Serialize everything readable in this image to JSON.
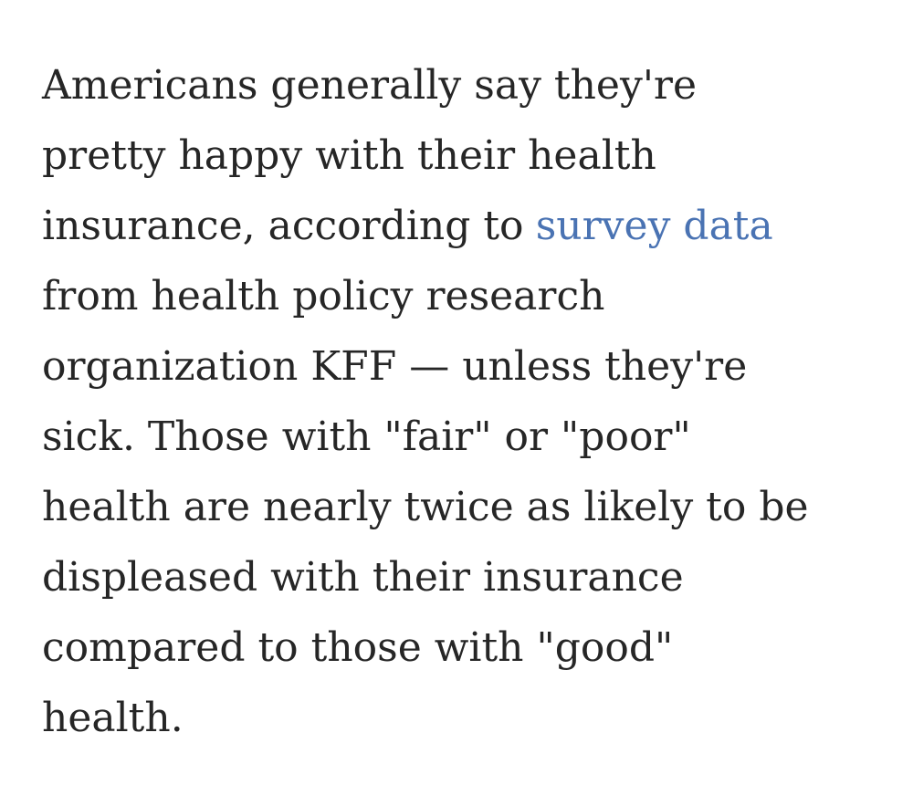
{
  "paragraph": {
    "lines": [
      "Americans generally say they're",
      "pretty happy with their health",
      {
        "text": "insurance, according to",
        "link": "survey data"
      },
      "from health policy research",
      "organization KFF — unless they're",
      "sick. Those with \"fair\" or \"poor\"",
      "health are nearly twice as likely to be",
      "displeased with their insurance",
      "compared to those with \"good\"",
      "health."
    ]
  }
}
